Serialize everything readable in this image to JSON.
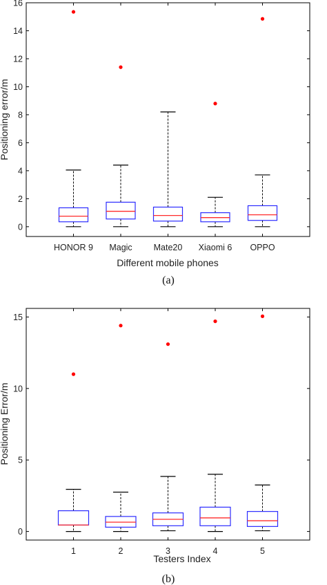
{
  "chart_data": [
    {
      "type": "box",
      "panel_label": "(a)",
      "xlabel": "Different mobile phones",
      "ylabel": "Positioning error/m",
      "ylim": [
        -0.7,
        16
      ],
      "yticks": [
        0,
        2,
        4,
        6,
        8,
        10,
        12,
        14,
        16
      ],
      "categories": [
        "HONOR 9",
        "Magic",
        "Mate20",
        "Xiaomi 6",
        "OPPO"
      ],
      "boxes": [
        {
          "min": 0.0,
          "q1": 0.35,
          "median": 0.75,
          "q3": 1.35,
          "max": 4.05,
          "outliers": [
            15.35
          ]
        },
        {
          "min": 0.0,
          "q1": 0.55,
          "median": 1.1,
          "q3": 1.75,
          "max": 4.4,
          "outliers": [
            11.4
          ]
        },
        {
          "min": 0.0,
          "q1": 0.4,
          "median": 0.8,
          "q3": 1.4,
          "max": 8.2,
          "outliers": []
        },
        {
          "min": 0.0,
          "q1": 0.35,
          "median": 0.65,
          "q3": 1.0,
          "max": 2.1,
          "outliers": [
            8.8
          ]
        },
        {
          "min": 0.0,
          "q1": 0.45,
          "median": 0.85,
          "q3": 1.5,
          "max": 3.7,
          "outliers": [
            14.85
          ]
        }
      ]
    },
    {
      "type": "box",
      "panel_label": "(b)",
      "xlabel": "Testers Index",
      "ylabel": "Positioning Error/m",
      "ylim": [
        -0.6,
        15.6
      ],
      "yticks": [
        0,
        5,
        10,
        15
      ],
      "categories": [
        "1",
        "2",
        "3",
        "4",
        "5"
      ],
      "boxes": [
        {
          "min": 0.0,
          "q1": 0.45,
          "median": 0.45,
          "q3": 1.45,
          "max": 2.95,
          "outliers": [
            11.0
          ]
        },
        {
          "min": 0.0,
          "q1": 0.3,
          "median": 0.65,
          "q3": 1.05,
          "max": 2.75,
          "outliers": [
            14.4
          ]
        },
        {
          "min": 0.05,
          "q1": 0.4,
          "median": 0.85,
          "q3": 1.3,
          "max": 3.85,
          "outliers": [
            13.1
          ]
        },
        {
          "min": 0.0,
          "q1": 0.4,
          "median": 0.95,
          "q3": 1.7,
          "max": 4.0,
          "outliers": [
            14.7
          ]
        },
        {
          "min": 0.05,
          "q1": 0.35,
          "median": 0.75,
          "q3": 1.4,
          "max": 3.25,
          "outliers": [
            15.05
          ]
        }
      ]
    }
  ],
  "colors": {
    "box": "#2b2bff",
    "median": "#ff2a2a",
    "outlier": "#ff0000",
    "whisker": "#000000",
    "axis": "#000000"
  }
}
